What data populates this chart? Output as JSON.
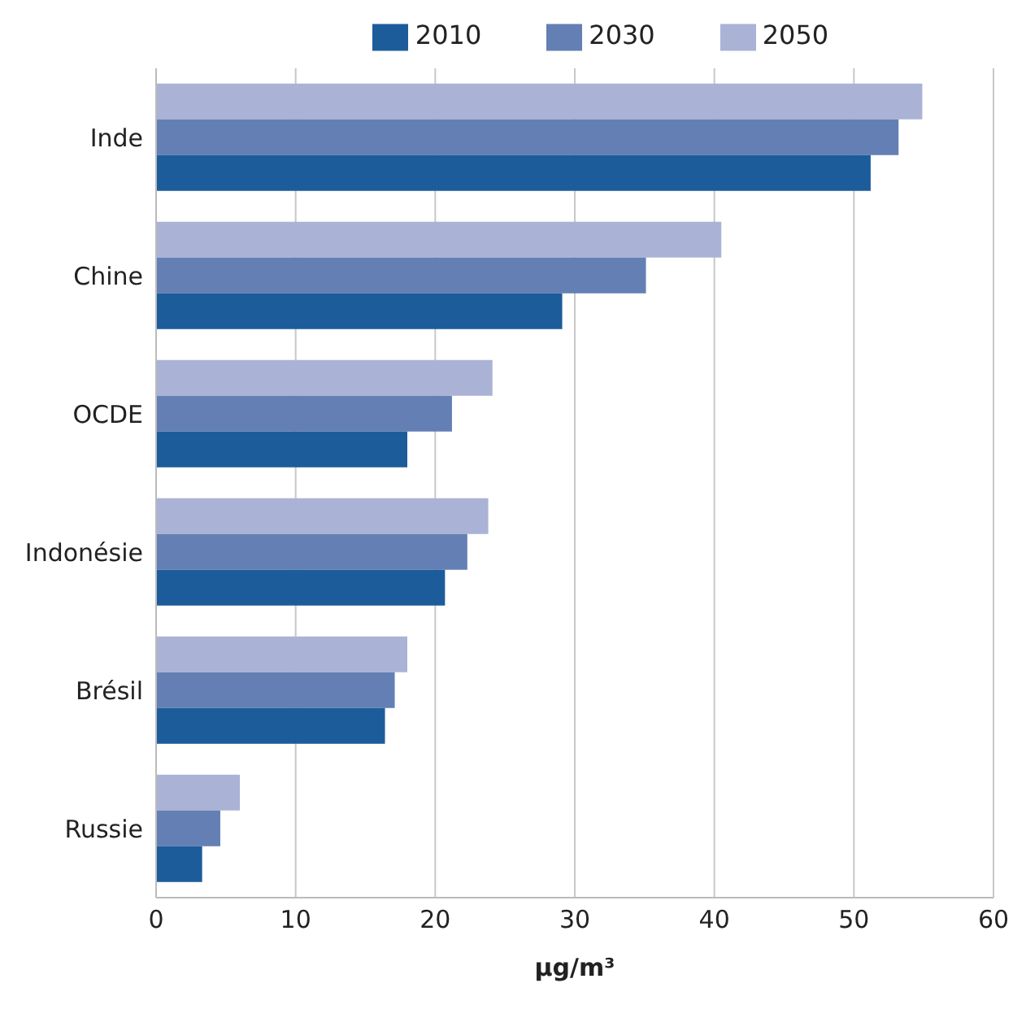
{
  "chart_data": {
    "type": "bar",
    "orientation": "horizontal",
    "xlabel": "µg/m³",
    "categories": [
      "Inde",
      "Chine",
      "OCDE",
      "Indonésie",
      "Brésil",
      "Russie"
    ],
    "series": [
      {
        "name": "2050",
        "color": "#aab3d6",
        "values": [
          54.9,
          40.5,
          24.1,
          23.8,
          18.0,
          6.0
        ]
      },
      {
        "name": "2030",
        "color": "#647fb3",
        "values": [
          53.2,
          35.1,
          21.2,
          22.3,
          17.1,
          4.6
        ]
      },
      {
        "name": "2010",
        "color": "#1d5c9b",
        "values": [
          51.2,
          29.1,
          18.0,
          20.7,
          16.4,
          3.3
        ]
      }
    ],
    "xlim": [
      0,
      60
    ],
    "xticks": [
      0,
      10,
      20,
      30,
      40,
      50,
      60
    ],
    "grid": "x",
    "legend": "top"
  }
}
